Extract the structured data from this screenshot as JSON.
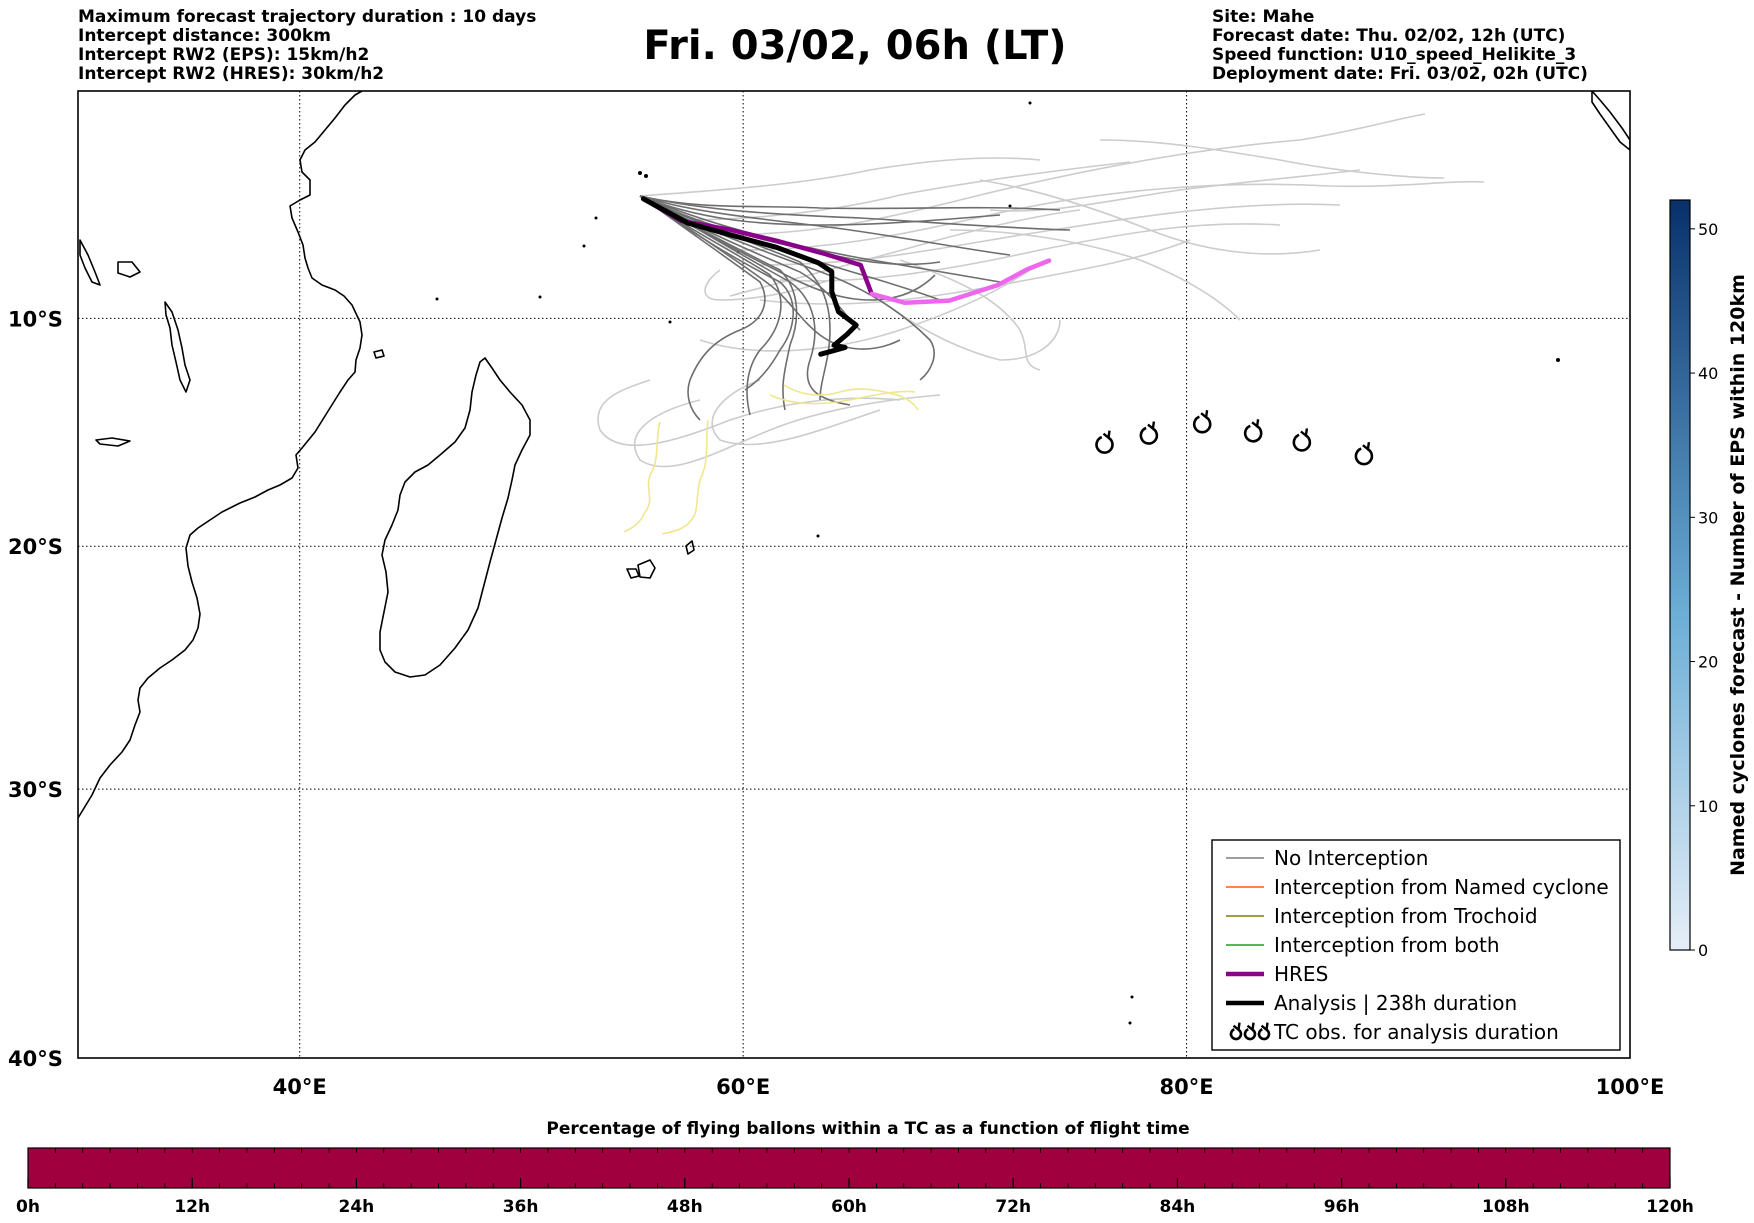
{
  "header_left": [
    "Maximum forecast trajectory duration : 10 days",
    "Intercept distance: 300km",
    "Intercept RW2 (EPS):  15km/h2",
    "Intercept RW2 (HRES): 30km/h2"
  ],
  "header_right": [
    "Site: Mahe",
    "Forecast date: Thu. 02/02, 12h (UTC)",
    "Speed function: U10_speed_Helikite_3",
    "Deployment date: Fri. 03/02, 02h (UTC)"
  ],
  "title": "Fri. 03/02, 06h (LT)",
  "map": {
    "lon_range": [
      30,
      100
    ],
    "lat_range": [
      -40,
      0.3
    ],
    "lon_ticks": [
      {
        "value": 40,
        "label": "40°E"
      },
      {
        "value": 60,
        "label": "60°E"
      },
      {
        "value": 80,
        "label": "80°E"
      },
      {
        "value": 100,
        "label": "100°E"
      }
    ],
    "lat_ticks": [
      {
        "value": -10,
        "label": "10°S"
      },
      {
        "value": -20,
        "label": "20°S"
      },
      {
        "value": -30,
        "label": "30°S"
      },
      {
        "value": -40,
        "label": "40°S"
      }
    ],
    "gridlines": true,
    "deployment_site": {
      "lon": 55.5,
      "lat": -4.6
    }
  },
  "legend": {
    "position": "lower-right",
    "items": [
      {
        "label": "No Interception",
        "color": "#7f7f7f",
        "style": "line-thin"
      },
      {
        "label": "Interception from Named cyclone",
        "color": "#ff5a14",
        "style": "line-thin"
      },
      {
        "label": "Interception from Trochoid",
        "color": "#808000",
        "style": "line-thin"
      },
      {
        "label": "Interception from both",
        "color": "#1aa01a",
        "style": "line-thin"
      },
      {
        "label": "HRES",
        "color": "#8b008b",
        "style": "line-thick"
      },
      {
        "label": "Analysis | 238h duration",
        "color": "#000000",
        "style": "line-thick"
      },
      {
        "label": "TC obs. for analysis duration",
        "color": "#000000",
        "style": "cyclone-symbols"
      }
    ]
  },
  "tc_observations": [
    {
      "lon": 76.3,
      "lat": -15.6
    },
    {
      "lon": 78.3,
      "lat": -15.2
    },
    {
      "lon": 80.7,
      "lat": -14.7
    },
    {
      "lon": 83.0,
      "lat": -15.1
    },
    {
      "lon": 85.2,
      "lat": -15.5
    },
    {
      "lon": 88.0,
      "lat": -16.1
    }
  ],
  "hres_track": {
    "color_early": "#8b008b",
    "color_late": "#ee66ee",
    "points": [
      [
        55.5,
        -4.6
      ],
      [
        57.2,
        -5.6
      ],
      [
        59.4,
        -6.0
      ],
      [
        61.5,
        -6.5
      ],
      [
        63.7,
        -7.1
      ],
      [
        65.3,
        -7.6
      ],
      [
        65.8,
        -8.9
      ],
      [
        67.3,
        -9.3
      ],
      [
        69.3,
        -9.2
      ],
      [
        71.5,
        -8.5
      ],
      [
        72.8,
        -7.8
      ],
      [
        73.8,
        -7.4
      ]
    ],
    "late_start_index": 6
  },
  "analysis_track": {
    "color": "#000000",
    "points": [
      [
        55.5,
        -4.6
      ],
      [
        57.5,
        -5.7
      ],
      [
        59.3,
        -6.2
      ],
      [
        61.5,
        -6.8
      ],
      [
        63.4,
        -7.5
      ],
      [
        64.0,
        -7.9
      ],
      [
        64.0,
        -8.8
      ],
      [
        64.3,
        -9.7
      ],
      [
        65.1,
        -10.3
      ],
      [
        64.7,
        -10.7
      ],
      [
        64.1,
        -11.2
      ],
      [
        64.6,
        -11.3
      ],
      [
        63.5,
        -11.6
      ]
    ]
  },
  "colorbar_vertical": {
    "title": "Named cyclones forecast - Number of EPS within 120km",
    "min": 0,
    "max": 52,
    "ticks": [
      {
        "value": 0,
        "label": "0"
      },
      {
        "value": 10,
        "label": "10"
      },
      {
        "value": 20,
        "label": "20"
      },
      {
        "value": 30,
        "label": "30"
      },
      {
        "value": 40,
        "label": "40"
      },
      {
        "value": 50,
        "label": "50"
      }
    ],
    "color_low": "#e6eef8",
    "color_high": "#08306b"
  },
  "colorbar_horizontal": {
    "title": "Percentage of flying ballons within a TC as a function of flight time",
    "color": "#a0003e",
    "ticks": [
      {
        "value": 0,
        "label": "0h"
      },
      {
        "value": 12,
        "label": "12h"
      },
      {
        "value": 24,
        "label": "24h"
      },
      {
        "value": 36,
        "label": "36h"
      },
      {
        "value": 48,
        "label": "48h"
      },
      {
        "value": 60,
        "label": "60h"
      },
      {
        "value": 72,
        "label": "72h"
      },
      {
        "value": 84,
        "label": "84h"
      },
      {
        "value": 96,
        "label": "96h"
      },
      {
        "value": 108,
        "label": "108h"
      },
      {
        "value": 120,
        "label": "120h"
      }
    ],
    "max": 120
  }
}
